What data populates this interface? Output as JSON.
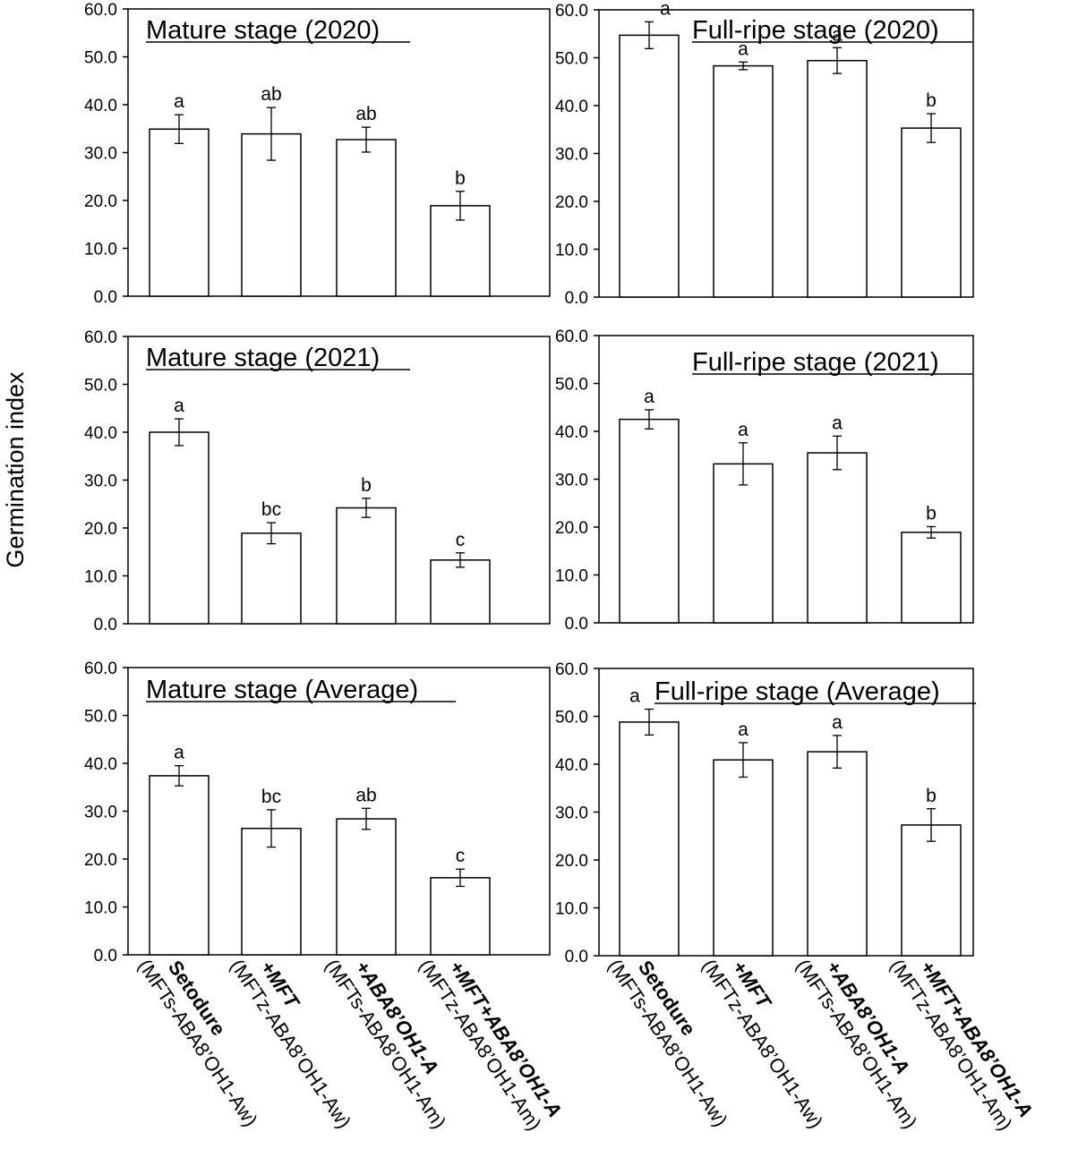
{
  "figure": {
    "ylabel": "Germination index"
  },
  "chart_data": [
    {
      "type": "bar",
      "title": "Mature stage (2020)",
      "ylabel": "Germination index",
      "ylim": [
        0,
        60
      ],
      "yticks": [
        "0.0",
        "10.0",
        "20.0",
        "30.0",
        "40.0",
        "50.0",
        "60.0"
      ],
      "categories": [
        "Setodure (MFTs-ABA8’OH1-Aw)",
        "+MFT (MFTz-ABA8’OH1-Aw)",
        "+ABA8’OH1-A (MFTs-ABA8’OH1-Am)",
        "+MFT+ABA8’OH1-A (MFTz-ABA8’OH1-Am)"
      ],
      "values": [
        34.9,
        33.9,
        32.7,
        18.9
      ],
      "errors": [
        3.0,
        5.5,
        2.6,
        3.0
      ],
      "letters": [
        "a",
        "ab",
        "ab",
        "b"
      ]
    },
    {
      "type": "bar",
      "title": "Full-ripe stage (2020)",
      "ylabel": "Germination index",
      "ylim": [
        0,
        60
      ],
      "yticks": [
        "0.0",
        "10.0",
        "20.0",
        "30.0",
        "40.0",
        "50.0",
        "60.0"
      ],
      "categories": [
        "Setodure (MFTs-ABA8’OH1-Aw)",
        "+MFT (MFTz-ABA8’OH1-Aw)",
        "+ABA8’OH1-A (MFTs-ABA8’OH1-Am)",
        "+MFT+ABA8’OH1-A (MFTz-ABA8’OH1-Am)"
      ],
      "values": [
        54.7,
        48.3,
        49.4,
        35.3
      ],
      "errors": [
        2.8,
        0.8,
        2.7,
        3.0
      ],
      "letters": [
        "a",
        "a",
        "a",
        "b"
      ]
    },
    {
      "type": "bar",
      "title": "Mature stage (2021)",
      "ylabel": "Germination index",
      "ylim": [
        0,
        60
      ],
      "yticks": [
        "0.0",
        "10.0",
        "20.0",
        "30.0",
        "40.0",
        "50.0",
        "60.0"
      ],
      "categories": [
        "Setodure (MFTs-ABA8’OH1-Aw)",
        "+MFT (MFTz-ABA8’OH1-Aw)",
        "+ABA8’OH1-A (MFTs-ABA8’OH1-Am)",
        "+MFT+ABA8’OH1-A (MFTz-ABA8’OH1-Am)"
      ],
      "values": [
        40.0,
        18.9,
        24.2,
        13.3
      ],
      "errors": [
        2.8,
        2.2,
        2.0,
        1.5
      ],
      "letters": [
        "a",
        "bc",
        "b",
        "c"
      ]
    },
    {
      "type": "bar",
      "title": "Full-ripe stage (2021)",
      "ylabel": "Germination index",
      "ylim": [
        0,
        60
      ],
      "yticks": [
        "0.0",
        "10.0",
        "20.0",
        "30.0",
        "40.0",
        "50.0",
        "60.0"
      ],
      "categories": [
        "Setodure (MFTs-ABA8’OH1-Aw)",
        "+MFT (MFTz-ABA8’OH1-Aw)",
        "+ABA8’OH1-A (MFTs-ABA8’OH1-Am)",
        "+MFT+ABA8’OH1-A (MFTz-ABA8’OH1-Am)"
      ],
      "values": [
        42.5,
        33.2,
        35.5,
        18.9
      ],
      "errors": [
        2.0,
        4.4,
        3.5,
        1.2
      ],
      "letters": [
        "a",
        "a",
        "a",
        "b"
      ]
    },
    {
      "type": "bar",
      "title": "Mature stage (Average)",
      "ylabel": "Germination index",
      "ylim": [
        0,
        60
      ],
      "yticks": [
        "0.0",
        "10.0",
        "20.0",
        "30.0",
        "40.0",
        "50.0",
        "60.0"
      ],
      "categories": [
        "Setodure (MFTs-ABA8’OH1-Aw)",
        "+MFT (MFTz-ABA8’OH1-Aw)",
        "+ABA8’OH1-A (MFTs-ABA8’OH1-Am)",
        "+MFT+ABA8’OH1-A (MFTz-ABA8’OH1-Am)"
      ],
      "values": [
        37.4,
        26.4,
        28.4,
        16.1
      ],
      "errors": [
        2.1,
        3.9,
        2.2,
        1.8
      ],
      "letters": [
        "a",
        "bc",
        "ab",
        "c"
      ]
    },
    {
      "type": "bar",
      "title": "Full-ripe stage (Average)",
      "ylabel": "Germination index",
      "ylim": [
        0,
        60
      ],
      "yticks": [
        "0.0",
        "10.0",
        "20.0",
        "30.0",
        "40.0",
        "50.0",
        "60.0"
      ],
      "categories": [
        "Setodure (MFTs-ABA8’OH1-Aw)",
        "+MFT (MFTz-ABA8’OH1-Aw)",
        "+ABA8’OH1-A (MFTs-ABA8’OH1-Am)",
        "+MFT+ABA8’OH1-A (MFTz-ABA8’OH1-Am)"
      ],
      "values": [
        48.8,
        40.9,
        42.6,
        27.3
      ],
      "errors": [
        2.7,
        3.6,
        3.4,
        3.4
      ],
      "letters": [
        "a",
        "a",
        "a",
        "b"
      ]
    }
  ],
  "x_axis_labels": [
    {
      "line1": "Setodure",
      "line2": "(MFTs-ABA8’OH1-Aw)",
      "italic1": false
    },
    {
      "line1": "+MFT",
      "line2": "(MFTz-ABA8’OH1-Aw)",
      "italic1": true
    },
    {
      "line1": "+ABA8’OH1-A",
      "line2": "(MFTs-ABA8’OH1-Am)",
      "italic1": true
    },
    {
      "line1": "+MFT+ABA8’OH1-A",
      "line2": "(MFTz-ABA8’OH1-Am)",
      "italic1": true
    }
  ]
}
